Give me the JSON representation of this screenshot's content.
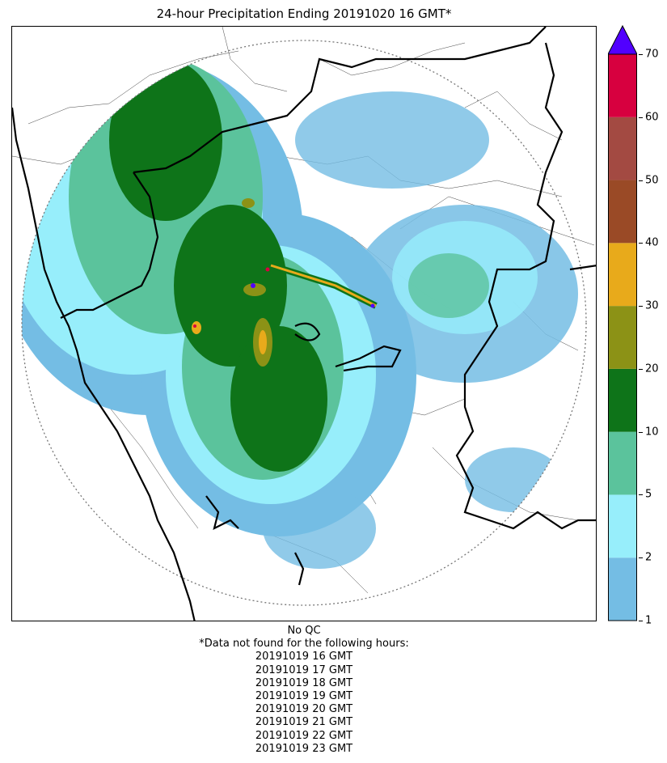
{
  "title": "24-hour Precipitation Ending 20191020 16 GMT*",
  "colorbar": {
    "ticks": [
      "1",
      "2",
      "5",
      "10",
      "20",
      "30",
      "40",
      "50",
      "60",
      "70"
    ],
    "bins": [
      {
        "from": "1",
        "to": "2",
        "color": "#74bde4"
      },
      {
        "from": "2",
        "to": "5",
        "color": "#97eefb"
      },
      {
        "from": "5",
        "to": "10",
        "color": "#5bc39c"
      },
      {
        "from": "10",
        "to": "20",
        "color": "#0e7419"
      },
      {
        "from": "20",
        "to": "30",
        "color": "#8c9216"
      },
      {
        "from": "30",
        "to": "40",
        "color": "#e8aa1b"
      },
      {
        "from": "40",
        "to": "50",
        "color": "#9a4a26"
      },
      {
        "from": "50",
        "to": "60",
        "color": "#a34a42"
      },
      {
        "from": "60",
        "to": "70",
        "color": "#d7003f"
      }
    ],
    "overflow_color": "#5100ff"
  },
  "footer": {
    "qc": "No QC",
    "note": "*Data not found for the following hours:",
    "missing_hours": [
      "20191019 16 GMT",
      "20191019 17 GMT",
      "20191019 18 GMT",
      "20191019 19 GMT",
      "20191019 20 GMT",
      "20191019 21 GMT",
      "20191019 22 GMT",
      "20191019 23 GMT"
    ]
  }
}
